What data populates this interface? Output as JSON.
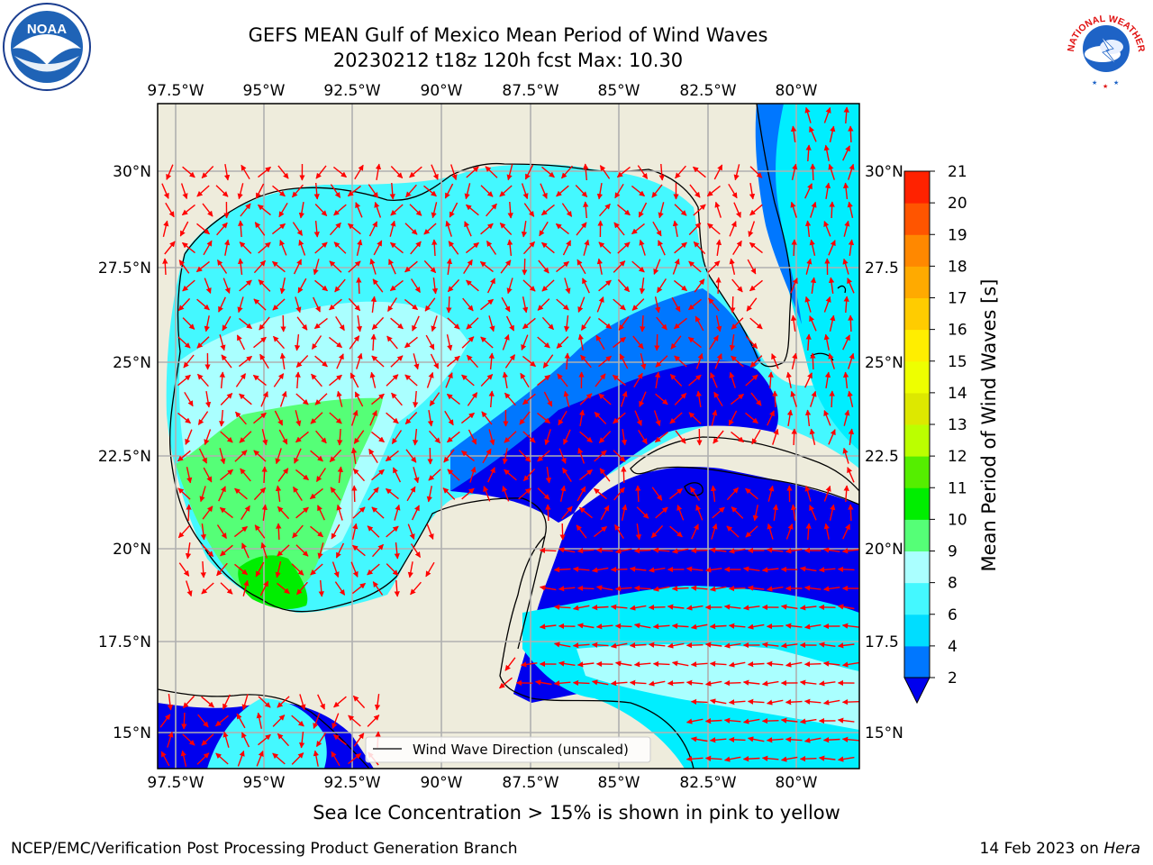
{
  "title": {
    "line1": "GEFS MEAN Gulf of Mexico Mean Period of Wind Waves",
    "line2": "20230212 t18z 120h fcst   Max: 10.30"
  },
  "map": {
    "lon_labels": [
      "97.5°W",
      "95°W",
      "92.5°W",
      "90°W",
      "87.5°W",
      "85°W",
      "82.5°W",
      "80°W"
    ],
    "lat_labels": [
      "30°N",
      "27.5°N",
      "25°N",
      "22.5°N",
      "20°N",
      "17.5°N",
      "15°N"
    ],
    "lat_labels_right": [
      "30°N",
      "27.5",
      "25°N",
      "22.5",
      "20°N",
      "17.5",
      "15°N"
    ],
    "legend_label": "Wind Wave Direction (unscaled)",
    "colors": {
      "land": "#eeecdc",
      "water_blue": "#0000ee",
      "water_mid": "#0077ff",
      "water_cyan": "#00eeff",
      "water_lightcyan": "#44f8ff",
      "water_pale": "#aaffff",
      "water_green": "#55ff77",
      "water_brightgreen": "#00ee00",
      "arrow": "#ff0000",
      "grid": "#b0b0b0"
    }
  },
  "colorbar": {
    "label": "Mean Period of Wind Waves [s]",
    "ticks": [
      "2",
      "4",
      "6",
      "8",
      "9",
      "10",
      "11",
      "12",
      "13",
      "14",
      "15",
      "16",
      "17",
      "18",
      "19",
      "20",
      "21"
    ],
    "colors": [
      "#0077ff",
      "#00ddff",
      "#44f8ff",
      "#aaffff",
      "#55ff77",
      "#00ee00",
      "#55ee00",
      "#bbff00",
      "#dde800",
      "#eeff00",
      "#ffee00",
      "#ffcc00",
      "#ffaa00",
      "#ff8800",
      "#ff5500",
      "#ff2200",
      "#ff0000"
    ],
    "underflow_color": "#0000ee"
  },
  "caption": "Sea Ice Concentration > 15% is shown in pink to yellow",
  "footer": {
    "left": "NCEP/EMC/Verification Post Processing Product Generation Branch",
    "right_prefix": "14 Feb 2023 on ",
    "right_host": "Hera"
  },
  "logos": {
    "noaa": "NOAA",
    "nws": "NATIONAL WEATHER SERVICE"
  }
}
